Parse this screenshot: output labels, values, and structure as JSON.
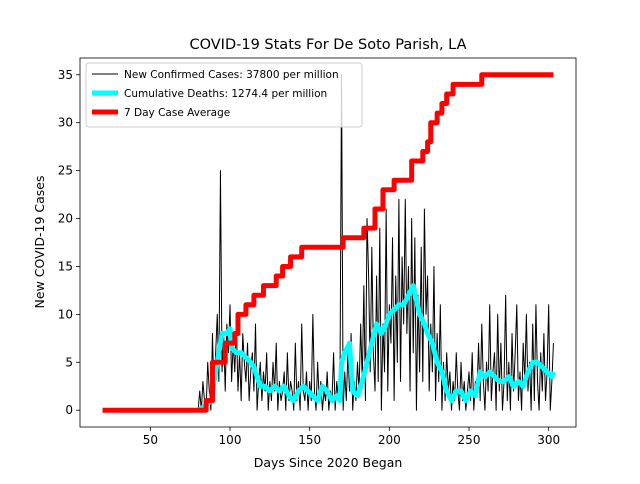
{
  "chart_data": {
    "type": "line",
    "title": "COVID-19 Stats For De Soto Parish, LA",
    "xlabel": "Days Since 2020 Began",
    "ylabel": "New COVID-19 Cases",
    "xlim": [
      5.85,
      317.15
    ],
    "ylim": [
      -1.75,
      36.75
    ],
    "xticks": [
      50,
      100,
      150,
      200,
      250,
      300
    ],
    "yticks": [
      0,
      5,
      10,
      15,
      20,
      25,
      30,
      35
    ],
    "legend": "upper left",
    "series": [
      {
        "name": "New Confirmed Cases: 37800 per million",
        "color": "#000000",
        "linewidth": 1,
        "x": [
          20,
          79,
          80,
          81,
          82,
          83,
          84,
          85,
          86,
          87,
          88,
          89,
          90,
          91,
          92,
          93,
          94,
          95,
          96,
          97,
          98,
          99,
          100,
          101,
          102,
          103,
          104,
          105,
          106,
          107,
          108,
          109,
          110,
          111,
          112,
          113,
          114,
          115,
          116,
          117,
          118,
          119,
          120,
          121,
          122,
          123,
          124,
          125,
          126,
          127,
          128,
          129,
          130,
          131,
          132,
          133,
          134,
          135,
          136,
          137,
          138,
          139,
          140,
          141,
          142,
          143,
          144,
          145,
          146,
          147,
          148,
          149,
          150,
          151,
          152,
          153,
          154,
          155,
          156,
          157,
          158,
          159,
          160,
          161,
          162,
          163,
          164,
          165,
          166,
          167,
          168,
          169,
          170,
          171,
          172,
          173,
          174,
          175,
          176,
          177,
          178,
          179,
          180,
          181,
          182,
          183,
          184,
          185,
          186,
          187,
          188,
          189,
          190,
          191,
          192,
          193,
          194,
          195,
          196,
          197,
          198,
          199,
          200,
          201,
          202,
          203,
          204,
          205,
          206,
          207,
          208,
          209,
          210,
          211,
          212,
          213,
          214,
          215,
          216,
          217,
          218,
          219,
          220,
          221,
          222,
          223,
          224,
          225,
          226,
          227,
          228,
          229,
          230,
          231,
          232,
          233,
          234,
          235,
          236,
          237,
          238,
          239,
          240,
          241,
          242,
          243,
          244,
          245,
          246,
          247,
          248,
          249,
          250,
          251,
          252,
          253,
          254,
          255,
          256,
          257,
          258,
          259,
          260,
          261,
          262,
          263,
          264,
          265,
          266,
          267,
          268,
          269,
          270,
          271,
          272,
          273,
          274,
          275,
          276,
          277,
          278,
          279,
          280,
          281,
          282,
          283,
          284,
          285,
          286,
          287,
          288,
          289,
          290,
          291,
          292,
          293,
          294,
          295,
          296,
          297,
          298,
          299,
          300,
          301,
          302,
          303
        ],
        "values": [
          0,
          0,
          0,
          2,
          0,
          3,
          1,
          0,
          5,
          2,
          0,
          8,
          1,
          6,
          10,
          3,
          25,
          4,
          8,
          2,
          9,
          6,
          11,
          3,
          7,
          4,
          9,
          2,
          6,
          1,
          8,
          5,
          3,
          7,
          1,
          4,
          6,
          2,
          9,
          0,
          3,
          5,
          1,
          4,
          2,
          6,
          0,
          3,
          1,
          5,
          2,
          7,
          0,
          3,
          1,
          2,
          4,
          0,
          6,
          1,
          3,
          2,
          0,
          7,
          1,
          3,
          0,
          9,
          2,
          1,
          4,
          0,
          3,
          1,
          10,
          2,
          0,
          5,
          1,
          3,
          0,
          2,
          1,
          4,
          0,
          2,
          1,
          6,
          0,
          3,
          1,
          2,
          35,
          0,
          4,
          1,
          6,
          2,
          8,
          0,
          3,
          1,
          5,
          2,
          9,
          3,
          13,
          1,
          20,
          14,
          4,
          17,
          6,
          2,
          14,
          3,
          19,
          0,
          9,
          4,
          21,
          2,
          11,
          7,
          18,
          1,
          14,
          5,
          22,
          3,
          16,
          9,
          22,
          8,
          15,
          2,
          20,
          6,
          18,
          0,
          12,
          4,
          17,
          3,
          21,
          10,
          14,
          2,
          9,
          4,
          15,
          1,
          8,
          3,
          11,
          0,
          5,
          1,
          6,
          2,
          4,
          0,
          3,
          1,
          6,
          2,
          0,
          5,
          1,
          3,
          0,
          2,
          4,
          1,
          6,
          0,
          3,
          2,
          7,
          1,
          9,
          3,
          0,
          5,
          2,
          11,
          1,
          4,
          6,
          0,
          10,
          2,
          7,
          0,
          3,
          12,
          1,
          5,
          0,
          8,
          2,
          6,
          11,
          1,
          4,
          0,
          7,
          3,
          10,
          2,
          5,
          0,
          9,
          1,
          11,
          3,
          0,
          6,
          2,
          8,
          1,
          4,
          11,
          0,
          3,
          7
        ]
      },
      {
        "name": "Cumulative Deaths: 1274.4 per million",
        "color": "#00ffff",
        "linewidth": 5,
        "x": [
          80,
          85,
          88,
          90,
          93,
          95,
          98,
          100,
          101,
          104,
          107,
          110,
          113,
          115,
          117,
          119,
          122,
          125,
          128,
          131,
          134,
          137,
          140,
          143,
          146,
          149,
          152,
          155,
          158,
          161,
          164,
          167,
          169,
          170,
          172,
          175,
          177,
          180,
          183,
          186,
          189,
          192,
          195,
          198,
          200,
          203,
          206,
          209,
          212,
          215,
          217,
          219,
          222,
          224,
          227,
          230,
          233,
          236,
          239,
          242,
          245,
          248,
          251,
          254,
          257,
          260,
          263,
          266,
          269,
          272,
          275,
          278,
          281,
          284,
          287,
          290,
          293,
          296,
          299,
          302,
          303
        ],
        "values": [
          0,
          0.5,
          1,
          3,
          6,
          8,
          8,
          8.5,
          6.5,
          6,
          6,
          5.5,
          5,
          4.5,
          3.5,
          2.5,
          2.5,
          2,
          2.5,
          2,
          2.5,
          1.5,
          1,
          2,
          2.5,
          2,
          1.5,
          1,
          2.5,
          2,
          1,
          1.5,
          1,
          5,
          6,
          7,
          2,
          1.5,
          3,
          5,
          7,
          9,
          8,
          9,
          10,
          10.5,
          11,
          11,
          12,
          13,
          11.5,
          10,
          9,
          8,
          7,
          5,
          4,
          2,
          1,
          2,
          2,
          1,
          2,
          1.5,
          4,
          3.5,
          4,
          3.5,
          3,
          3,
          3.5,
          2.5,
          3,
          2.5,
          4,
          5,
          5,
          4.5,
          4,
          3.5,
          4
        ]
      },
      {
        "name": "7 Day Case Average",
        "color": "#ff0000",
        "linewidth": 5,
        "drawstyle": "steps-post",
        "x": [
          20,
          85,
          89,
          97,
          103,
          105,
          110,
          115,
          121,
          129,
          133,
          138,
          145,
          171,
          184,
          191,
          196,
          203,
          214,
          221,
          224,
          226,
          230,
          233,
          236,
          240,
          246,
          258,
          303
        ],
        "values": [
          0,
          1,
          5,
          7,
          8,
          10,
          11,
          12,
          13,
          14,
          15,
          16,
          17,
          18,
          19,
          21,
          23,
          24,
          26,
          27,
          28,
          30,
          31,
          32,
          33,
          34,
          34,
          35,
          35
        ]
      }
    ]
  }
}
